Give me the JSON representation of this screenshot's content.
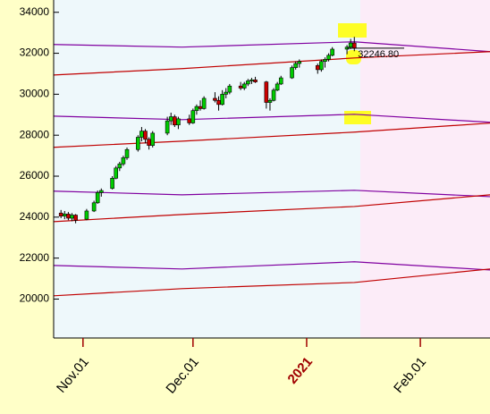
{
  "chart_data": {
    "type": "candlestick",
    "x": [
      "10-26",
      "10-27",
      "10-28",
      "10-29",
      "10-30",
      "11-02",
      "11-04",
      "11-05",
      "11-06",
      "11-09",
      "11-10",
      "11-11",
      "11-12",
      "11-13",
      "11-16",
      "11-17",
      "11-18",
      "11-19",
      "11-20",
      "11-24",
      "11-25",
      "11-26",
      "11-27",
      "11-30",
      "12-01",
      "12-02",
      "12-03",
      "12-04",
      "12-07",
      "12-08",
      "12-09",
      "12-10",
      "12-11",
      "12-14",
      "12-15",
      "12-16",
      "12-17",
      "12-18",
      "12-21",
      "12-22",
      "12-23",
      "12-24",
      "12-25",
      "12-28",
      "12-29",
      "12-30",
      "01-04",
      "01-05",
      "01-06",
      "01-07",
      "01-08",
      "01-12",
      "01-13",
      "01-14"
    ],
    "open": [
      24200,
      24050,
      24150,
      23950,
      24100,
      23900,
      24300,
      24700,
      25200,
      25400,
      25900,
      26400,
      26600,
      26900,
      27300,
      27900,
      28200,
      27800,
      27500,
      28100,
      28700,
      28900,
      28500,
      28800,
      28600,
      29200,
      29400,
      29300,
      29800,
      29700,
      29500,
      30000,
      30100,
      30400,
      30300,
      30500,
      30650,
      30700,
      30600,
      29600,
      29700,
      30200,
      30500,
      30800,
      31300,
      31500,
      31400,
      31200,
      31600,
      31700,
      31900,
      32200,
      32300,
      32500
    ],
    "high": [
      24350,
      24300,
      24250,
      24200,
      24150,
      24400,
      24800,
      25300,
      25400,
      26000,
      26500,
      26700,
      27000,
      27400,
      28000,
      28400,
      28300,
      27900,
      28200,
      28900,
      29100,
      29000,
      28900,
      29000,
      29300,
      29500,
      29700,
      29900,
      30100,
      29900,
      30200,
      30300,
      30500,
      30600,
      30600,
      30750,
      30800,
      30850,
      30650,
      29800,
      30300,
      30600,
      30900,
      31400,
      31600,
      31700,
      31500,
      31700,
      31800,
      32000,
      32300,
      32400,
      32700,
      32800
    ],
    "low": [
      23950,
      23900,
      23850,
      23800,
      23700,
      23850,
      24250,
      24650,
      25000,
      25350,
      25850,
      26250,
      26500,
      26800,
      27200,
      27700,
      27600,
      27300,
      27400,
      28000,
      28500,
      28400,
      28300,
      28500,
      28550,
      29000,
      29200,
      29250,
      29600,
      29200,
      29450,
      29800,
      30000,
      30200,
      30200,
      30400,
      30500,
      30550,
      29300,
      29200,
      29650,
      30150,
      30450,
      30750,
      31200,
      31300,
      31000,
      31100,
      31300,
      31600,
      31850,
      31950,
      32200,
      32100
    ],
    "close": [
      24050,
      24150,
      23950,
      24100,
      23850,
      24300,
      24700,
      25200,
      25300,
      25900,
      26400,
      26600,
      26900,
      27300,
      27900,
      28200,
      27800,
      27500,
      28100,
      28700,
      28900,
      28500,
      28800,
      28600,
      29200,
      29400,
      29300,
      29800,
      29700,
      29500,
      30000,
      30100,
      30400,
      30300,
      30500,
      30650,
      30700,
      30600,
      29600,
      29700,
      30200,
      30500,
      30800,
      31300,
      31500,
      31600,
      31200,
      31600,
      31700,
      31900,
      32200,
      32300,
      32500,
      32246.8
    ],
    "up_color": "#00cc00",
    "down_color": "#cc0000",
    "last_label": "32246.80",
    "bands": [
      {
        "color": "#8000a0",
        "x": [
          "10-24",
          "11-28",
          "01-14",
          "02-20"
        ],
        "values": [
          32430,
          32300,
          32560,
          32080
        ]
      },
      {
        "color": "#c00000",
        "x": [
          "10-24",
          "11-28",
          "01-14",
          "02-20"
        ],
        "values": [
          30940,
          31250,
          31770,
          32080
        ]
      },
      {
        "color": "#8000a0",
        "x": [
          "10-24",
          "11-28",
          "01-14",
          "02-20"
        ],
        "values": [
          28930,
          28760,
          29020,
          28630
        ]
      },
      {
        "color": "#c00000",
        "x": [
          "10-24",
          "11-28",
          "01-14",
          "02-20"
        ],
        "values": [
          27410,
          27710,
          28150,
          28590
        ]
      },
      {
        "color": "#8000a0",
        "x": [
          "10-24",
          "11-28",
          "01-14",
          "02-20"
        ],
        "values": [
          25270,
          25090,
          25310,
          25000
        ]
      },
      {
        "color": "#c00000",
        "x": [
          "10-24",
          "11-28",
          "01-14",
          "02-20"
        ],
        "values": [
          23780,
          24130,
          24520,
          25090
        ]
      },
      {
        "color": "#8000a0",
        "x": [
          "10-24",
          "11-28",
          "01-14",
          "02-20"
        ],
        "values": [
          21640,
          21470,
          21820,
          21420
        ]
      },
      {
        "color": "#c00000",
        "x": [
          "10-24",
          "11-28",
          "01-14",
          "02-20"
        ],
        "values": [
          20160,
          20510,
          20810,
          21470
        ]
      }
    ],
    "xlim": [
      "10-24",
      "02-20"
    ],
    "xticks": [
      {
        "value": "11-01",
        "label": "Nov.01"
      },
      {
        "value": "12-01",
        "label": "Dec.01"
      },
      {
        "value": "01-01",
        "label": "2021"
      },
      {
        "value": "02-01",
        "label": "Feb.01"
      }
    ],
    "ylim": [
      18100,
      34600
    ],
    "yticks": [
      34000,
      32000,
      30000,
      28000,
      26000,
      24000,
      22000,
      20000
    ]
  }
}
